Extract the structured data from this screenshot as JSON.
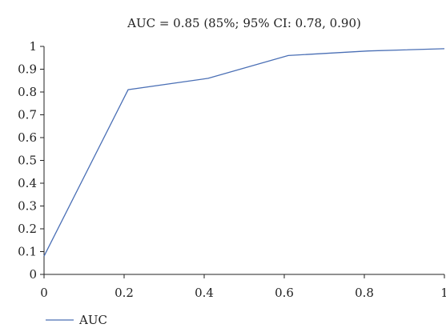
{
  "chart_data": {
    "type": "line",
    "title": "AUC = 0.85 (85%; 95% CI: 0.78, 0.90)",
    "xlabel": "",
    "ylabel": "",
    "xlim": [
      0,
      1
    ],
    "ylim": [
      0,
      1
    ],
    "x_ticks": [
      0,
      0.2,
      0.4,
      0.6,
      0.8,
      1
    ],
    "x_tick_labels": [
      "0",
      "0.2",
      "0.4",
      "0.6",
      "0.8",
      "1"
    ],
    "y_ticks": [
      0,
      0.1,
      0.2,
      0.3,
      0.4,
      0.5,
      0.6,
      0.7,
      0.8,
      0.9,
      1
    ],
    "y_tick_labels": [
      "0",
      "0.1",
      "0.2",
      "0.3",
      "0.4",
      "0.5",
      "0.6",
      "0.7",
      "0.8",
      "0.9",
      "1"
    ],
    "grid": false,
    "legend_position": "bottom-left",
    "series": [
      {
        "name": "AUC",
        "color": "#4a6fb5",
        "x": [
          0,
          0.21,
          0.41,
          0.61,
          0.81,
          1
        ],
        "y": [
          0.08,
          0.81,
          0.86,
          0.96,
          0.98,
          0.99
        ]
      }
    ]
  }
}
